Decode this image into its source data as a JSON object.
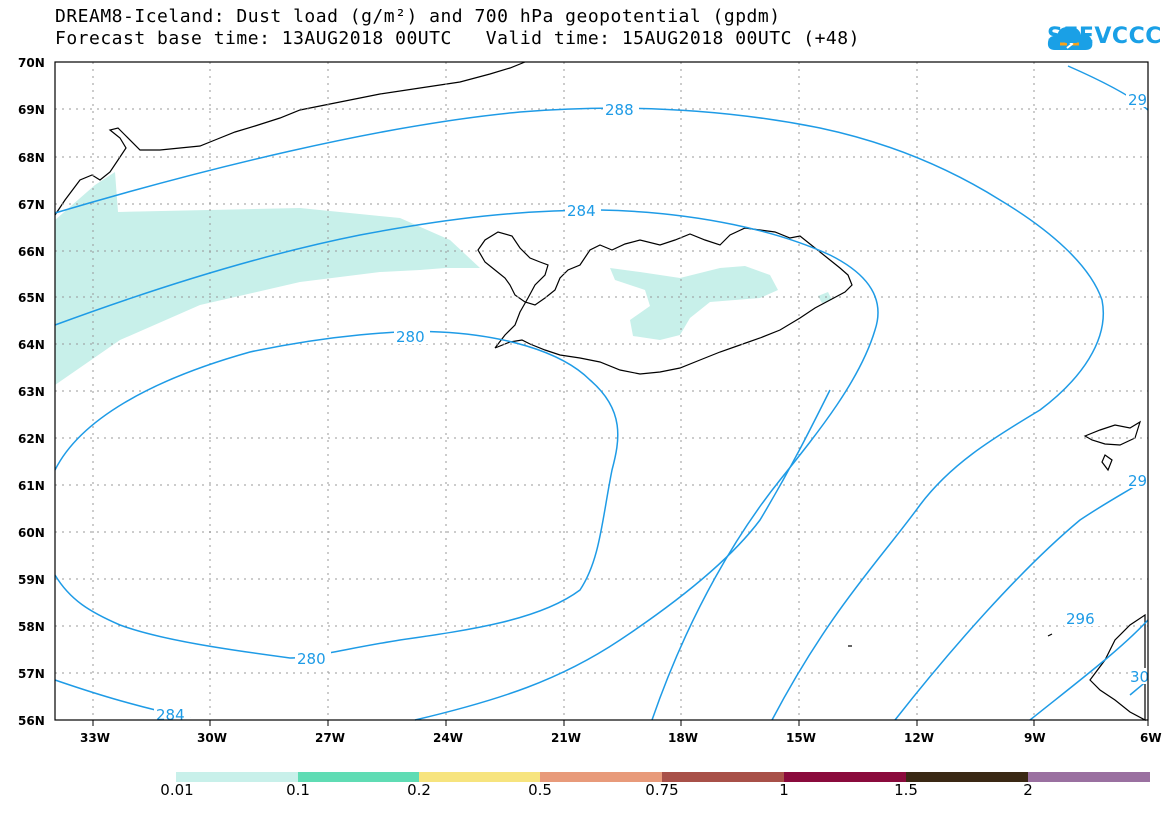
{
  "header": {
    "title_line1": "DREAM8-Iceland: Dust load (g/m²) and 700 hPa geopotential (gpdm)",
    "title_line2": "Forecast base time: 13AUG2018 00UTC   Valid time: 15AUG2018 00UTC (+48)"
  },
  "logo": {
    "text": "SEEVCCC",
    "icon": "cloud-icon",
    "color": "#1aa0e6"
  },
  "axes": {
    "lat_labels": [
      "70N",
      "69N",
      "68N",
      "67N",
      "66N",
      "65N",
      "64N",
      "63N",
      "62N",
      "61N",
      "60N",
      "59N",
      "58N",
      "57N",
      "56N"
    ],
    "lon_labels": [
      "33W",
      "30W",
      "27W",
      "24W",
      "21W",
      "18W",
      "15W",
      "12W",
      "9W",
      "6W"
    ]
  },
  "contour_labels": {
    "c288": "288",
    "c284_top": "284",
    "c280_upper": "280",
    "c280_lower": "280",
    "c284_bottom": "284",
    "c292_right_top": "29",
    "c292_right_mid": "29",
    "c296": "296",
    "c300_right": "30"
  },
  "colorbar": {
    "labels": [
      "0.01",
      "0.1",
      "0.2",
      "0.5",
      "0.75",
      "1",
      "1.5",
      "2"
    ],
    "colors": [
      "#c8f0ea",
      "#5fdcb4",
      "#f7e47e",
      "#e89a7a",
      "#a85048",
      "#8a0a3c",
      "#3a2814",
      "#9a70a0"
    ]
  },
  "colors": {
    "contour": "#1e9be6",
    "dust_low": "#c8f0ea"
  }
}
